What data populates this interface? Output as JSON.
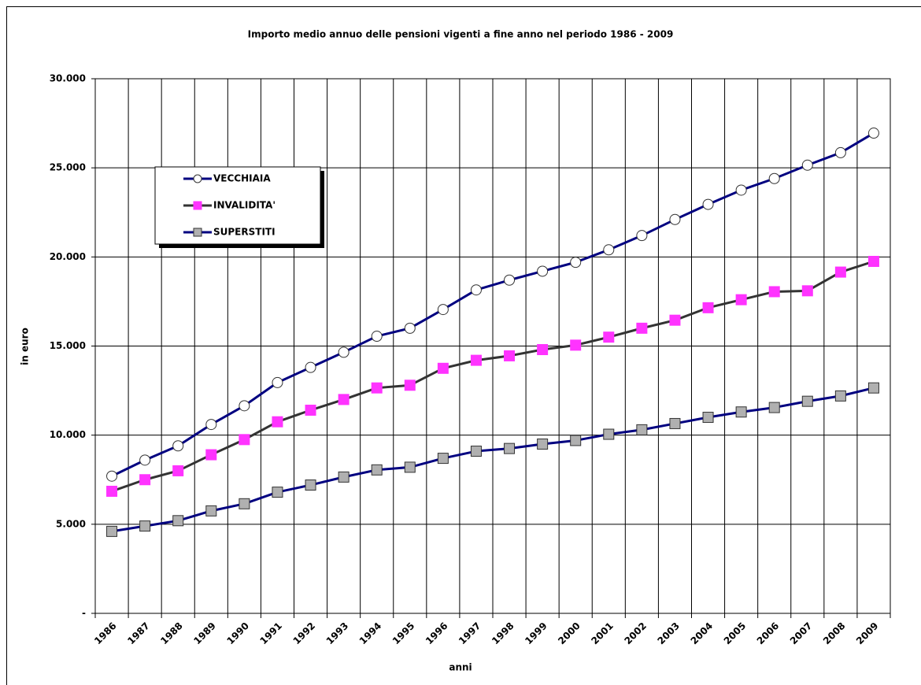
{
  "chart_data": {
    "type": "line",
    "title": "Importo medio annuo delle pensioni vigenti a fine anno nel periodo 1986 - 2009",
    "x_label": "anni",
    "y_label": "in euro",
    "categories": [
      "1986",
      "1987",
      "1988",
      "1989",
      "1990",
      "1991",
      "1992",
      "1993",
      "1994",
      "1995",
      "1996",
      "1997",
      "1998",
      "1999",
      "2000",
      "2001",
      "2002",
      "2003",
      "2004",
      "2005",
      "2006",
      "2007",
      "2008",
      "2009"
    ],
    "series": [
      {
        "name": "VECCHIAIA",
        "color": "#000080",
        "marker": "circle",
        "marker_color": "#ffffff",
        "values": [
          7700,
          8600,
          9400,
          10600,
          11650,
          12950,
          13800,
          14650,
          15550,
          16000,
          17050,
          18150,
          18700,
          19200,
          19700,
          20400,
          21200,
          22100,
          22950,
          23750,
          24400,
          25150,
          25850,
          26950
        ]
      },
      {
        "name": "INVALIDITA'",
        "color": "#333333",
        "marker": "square",
        "marker_color": "#ff33ff",
        "values": [
          6850,
          7500,
          8000,
          8900,
          9750,
          10750,
          11400,
          12000,
          12650,
          12800,
          13750,
          14200,
          14450,
          14800,
          15050,
          15500,
          16000,
          16450,
          17150,
          17600,
          18050,
          18100,
          19150,
          19750
        ]
      },
      {
        "name": "SUPERSTITI",
        "color": "#000080",
        "marker": "square",
        "marker_color": "#b0b0b0",
        "values": [
          4600,
          4900,
          5200,
          5750,
          6150,
          6800,
          7200,
          7650,
          8050,
          8200,
          8700,
          9100,
          9250,
          9500,
          9700,
          10050,
          10300,
          10650,
          11000,
          11300,
          11550,
          11900,
          12200,
          12650
        ]
      }
    ],
    "ylim": [
      0,
      30000
    ],
    "yticks": [
      {
        "value": 0,
        "label": "-"
      },
      {
        "value": 5000,
        "label": "5.000"
      },
      {
        "value": 10000,
        "label": "10.000"
      },
      {
        "value": 15000,
        "label": "15.000"
      },
      {
        "value": 20000,
        "label": "20.000"
      },
      {
        "value": 25000,
        "label": "25.000"
      },
      {
        "value": 30000,
        "label": "30.000"
      }
    ],
    "grid": true,
    "legend_position": "upper left"
  }
}
